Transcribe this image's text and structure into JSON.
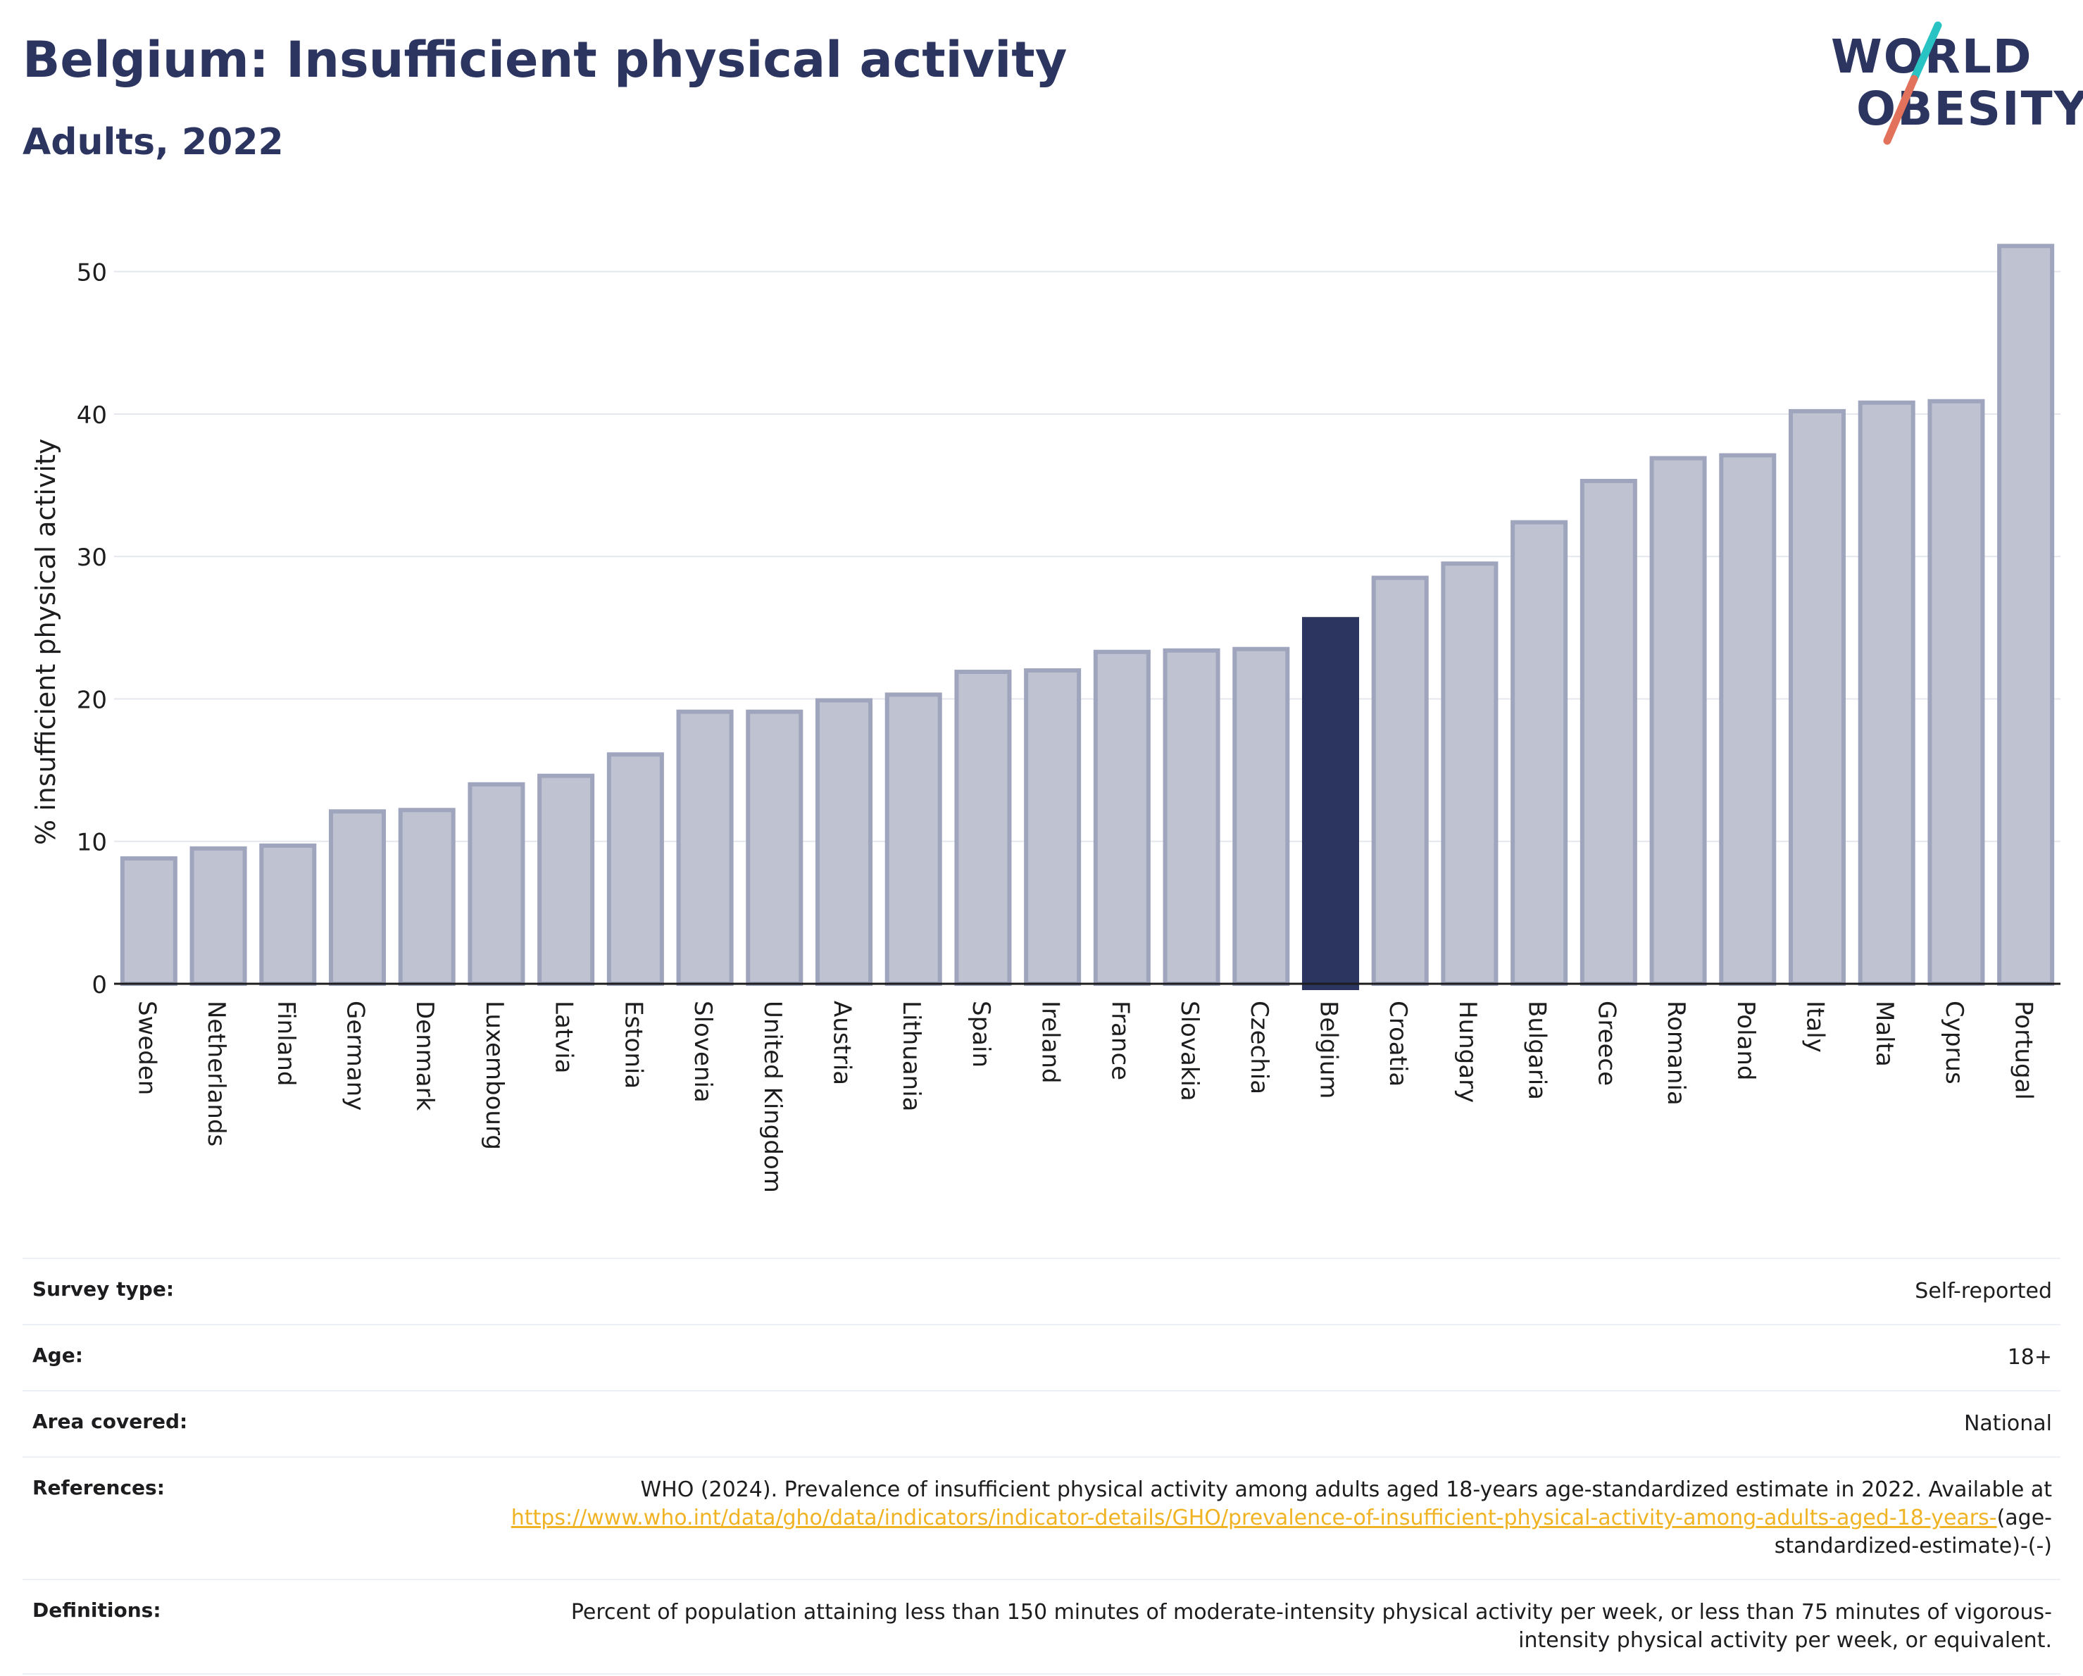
{
  "header": {
    "title": "Belgium: Insufficient physical activity",
    "subtitle": "Adults, 2022"
  },
  "logo": {
    "line1": "WORLD",
    "line2": "OBESITY",
    "slash_colors": [
      "#2ac3c3",
      "#e2725b"
    ]
  },
  "colors": {
    "highlight": "#2b3560",
    "bar_fill": "#bfc3d1",
    "bar_stroke": "#9fa5bc",
    "axis": "#1d1d1f",
    "grid": "#e5e7ee",
    "link": "#f0b323"
  },
  "chart_data": {
    "type": "bar",
    "title": "Belgium: Insufficient physical activity",
    "subtitle": "Adults, 2022",
    "ylabel": "% insufficient physical activity",
    "xlabel": "",
    "ylim": [
      0,
      53
    ],
    "yticks": [
      0,
      10,
      20,
      30,
      40,
      50
    ],
    "grid": true,
    "highlight": "Belgium",
    "categories": [
      "Sweden",
      "Netherlands",
      "Finland",
      "Germany",
      "Denmark",
      "Luxembourg",
      "Latvia",
      "Estonia",
      "Slovenia",
      "United Kingdom",
      "Austria",
      "Lithuania",
      "Spain",
      "Ireland",
      "France",
      "Slovakia",
      "Czechia",
      "Belgium",
      "Croatia",
      "Hungary",
      "Bulgaria",
      "Greece",
      "Romania",
      "Poland",
      "Italy",
      "Malta",
      "Cyprus",
      "Portugal"
    ],
    "values": [
      8.8,
      9.5,
      9.7,
      12.1,
      12.2,
      14.0,
      14.6,
      16.1,
      19.1,
      19.1,
      19.9,
      20.3,
      21.9,
      22.0,
      23.3,
      23.4,
      23.5,
      25.6,
      28.5,
      29.5,
      32.4,
      35.3,
      36.9,
      37.1,
      40.2,
      40.8,
      40.9,
      51.8
    ]
  },
  "meta": {
    "survey_type_label": "Survey type:",
    "survey_type_value": "Self-reported",
    "age_label": "Age:",
    "age_value": "18+",
    "area_label": "Area covered:",
    "area_value": "National",
    "references_label": "References:",
    "references_text": "WHO (2024). Prevalence of insufficient physical activity among adults aged 18-years age-standardized estimate in 2022. Available at",
    "references_link": "https://www.who.int/data/gho/data/indicators/indicator-details/GHO/prevalence-of-insufficient-physical-activity-among-adults-aged-18-years-",
    "references_link_suffix": "(age-standardized-estimate)-(-)",
    "definitions_label": "Definitions:",
    "definitions_value": "Percent of population attaining less than 150 minutes of moderate-intensity physical activity per week, or less than 75 minutes of vigorous-intensity physical activity per week, or equivalent."
  }
}
